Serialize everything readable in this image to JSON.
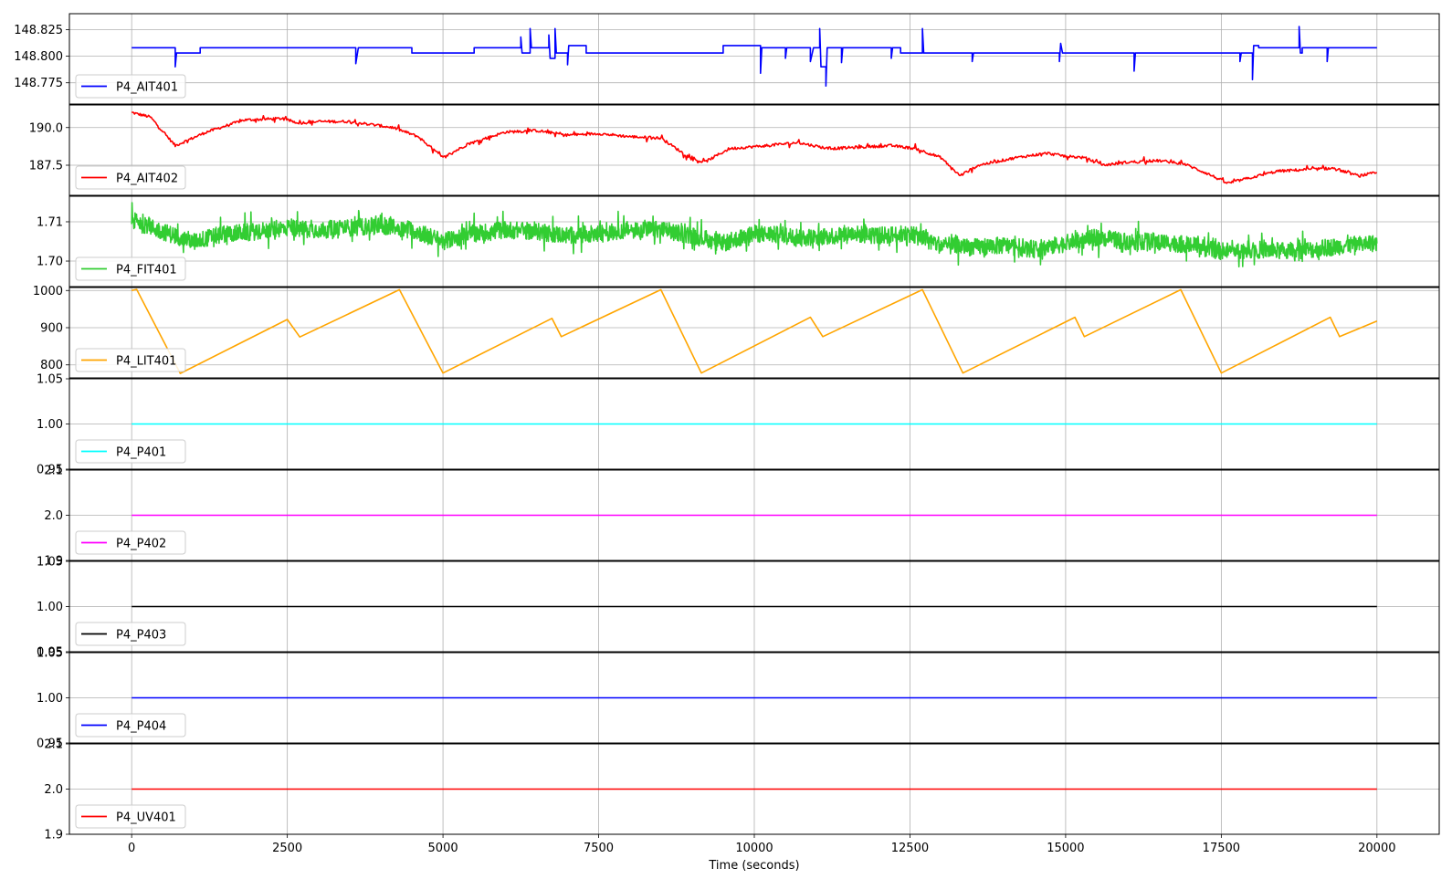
{
  "chart_data": {
    "type": "line",
    "xlabel": "Time (seconds)",
    "xlim": [
      -1000,
      21000
    ],
    "xticks": [
      0,
      2500,
      5000,
      7500,
      10000,
      12500,
      15000,
      17500,
      20000
    ],
    "xtick_labels": [
      "0",
      "2500",
      "5000",
      "7500",
      "10000",
      "12500",
      "15000",
      "17500",
      "20000"
    ],
    "grid": true,
    "legend_location": "lower left",
    "subplots": [
      {
        "name": "P4_AIT401",
        "color": "#0000ff",
        "ylim": [
          148.755,
          148.84
        ],
        "yticks": [
          148.775,
          148.8,
          148.825
        ],
        "ytick_labels": [
          "148.775",
          "148.800",
          "148.825"
        ],
        "points": [
          [
            0,
            148.808
          ],
          [
            700,
            148.808
          ],
          [
            700,
            148.79
          ],
          [
            720,
            148.803
          ],
          [
            1100,
            148.803
          ],
          [
            1100,
            148.808
          ],
          [
            3600,
            148.808
          ],
          [
            3600,
            148.793
          ],
          [
            3640,
            148.808
          ],
          [
            4500,
            148.808
          ],
          [
            4500,
            148.803
          ],
          [
            5500,
            148.803
          ],
          [
            5500,
            148.808
          ],
          [
            6250,
            148.808
          ],
          [
            6250,
            148.818
          ],
          [
            6270,
            148.803
          ],
          [
            6400,
            148.803
          ],
          [
            6400,
            148.826
          ],
          [
            6420,
            148.808
          ],
          [
            6700,
            148.808
          ],
          [
            6700,
            148.82
          ],
          [
            6720,
            148.798
          ],
          [
            6800,
            148.798
          ],
          [
            6800,
            148.826
          ],
          [
            6820,
            148.803
          ],
          [
            7000,
            148.803
          ],
          [
            7000,
            148.792
          ],
          [
            7020,
            148.81
          ],
          [
            7300,
            148.81
          ],
          [
            7300,
            148.803
          ],
          [
            8400,
            148.803
          ],
          [
            8400,
            148.803
          ],
          [
            9500,
            148.803
          ],
          [
            9500,
            148.81
          ],
          [
            10100,
            148.81
          ],
          [
            10100,
            148.784
          ],
          [
            10120,
            148.808
          ],
          [
            10500,
            148.808
          ],
          [
            10500,
            148.798
          ],
          [
            10520,
            148.808
          ],
          [
            10900,
            148.808
          ],
          [
            10900,
            148.795
          ],
          [
            10950,
            148.808
          ],
          [
            11050,
            148.808
          ],
          [
            11050,
            148.826
          ],
          [
            11070,
            148.79
          ],
          [
            11150,
            148.79
          ],
          [
            11150,
            148.772
          ],
          [
            11170,
            148.808
          ],
          [
            11400,
            148.808
          ],
          [
            11400,
            148.794
          ],
          [
            11420,
            148.808
          ],
          [
            12200,
            148.808
          ],
          [
            12200,
            148.798
          ],
          [
            12220,
            148.808
          ],
          [
            12350,
            148.808
          ],
          [
            12350,
            148.803
          ],
          [
            12700,
            148.803
          ],
          [
            12700,
            148.826
          ],
          [
            12720,
            148.803
          ],
          [
            13500,
            148.803
          ],
          [
            13500,
            148.795
          ],
          [
            13520,
            148.803
          ],
          [
            14900,
            148.803
          ],
          [
            14900,
            148.795
          ],
          [
            14920,
            148.812
          ],
          [
            14950,
            148.803
          ],
          [
            16100,
            148.803
          ],
          [
            16100,
            148.786
          ],
          [
            16120,
            148.803
          ],
          [
            17800,
            148.803
          ],
          [
            17800,
            148.795
          ],
          [
            17820,
            148.803
          ],
          [
            18000,
            148.803
          ],
          [
            18000,
            148.778
          ],
          [
            18020,
            148.81
          ],
          [
            18100,
            148.81
          ],
          [
            18100,
            148.808
          ],
          [
            18750,
            148.808
          ],
          [
            18750,
            148.828
          ],
          [
            18770,
            148.803
          ],
          [
            18800,
            148.803
          ],
          [
            18800,
            148.808
          ],
          [
            19200,
            148.808
          ],
          [
            19200,
            148.795
          ],
          [
            19220,
            148.808
          ],
          [
            20000,
            148.808
          ]
        ]
      },
      {
        "name": "P4_AIT402",
        "color": "#ff0000",
        "ylim": [
          185.5,
          191.5
        ],
        "yticks": [
          187.5,
          190.0
        ],
        "ytick_labels": [
          "187.5",
          "190.0"
        ],
        "points": [
          [
            0,
            191.0
          ],
          [
            300,
            190.7
          ],
          [
            700,
            188.8
          ],
          [
            1200,
            189.7
          ],
          [
            1800,
            190.5
          ],
          [
            2400,
            190.6
          ],
          [
            2700,
            190.3
          ],
          [
            3000,
            190.4
          ],
          [
            3500,
            190.4
          ],
          [
            4200,
            190.0
          ],
          [
            4600,
            189.4
          ],
          [
            5000,
            188.0
          ],
          [
            5400,
            188.9
          ],
          [
            6000,
            189.7
          ],
          [
            6500,
            189.8
          ],
          [
            7000,
            189.5
          ],
          [
            7500,
            189.6
          ],
          [
            8000,
            189.4
          ],
          [
            8500,
            189.3
          ],
          [
            9000,
            187.9
          ],
          [
            9200,
            187.7
          ],
          [
            9600,
            188.6
          ],
          [
            10200,
            188.8
          ],
          [
            10700,
            189.0
          ],
          [
            11200,
            188.6
          ],
          [
            11700,
            188.7
          ],
          [
            12200,
            188.8
          ],
          [
            12600,
            188.6
          ],
          [
            13000,
            188.0
          ],
          [
            13300,
            186.8
          ],
          [
            13600,
            187.5
          ],
          [
            14200,
            188.0
          ],
          [
            14700,
            188.3
          ],
          [
            15000,
            188.1
          ],
          [
            15300,
            188.0
          ],
          [
            15600,
            187.5
          ],
          [
            16000,
            187.7
          ],
          [
            16500,
            187.8
          ],
          [
            16900,
            187.6
          ],
          [
            17300,
            186.9
          ],
          [
            17600,
            186.3
          ],
          [
            17900,
            186.6
          ],
          [
            18400,
            187.1
          ],
          [
            18800,
            187.2
          ],
          [
            19300,
            187.3
          ],
          [
            19700,
            186.8
          ],
          [
            20000,
            187.0
          ]
        ]
      },
      {
        "name": "P4_FIT401",
        "color": "#32cd32",
        "ylim": [
          1.6935,
          1.7165
        ],
        "yticks": [
          1.7,
          1.71
        ],
        "ytick_labels": [
          "1.70",
          "1.71"
        ],
        "points": [
          [
            0,
            1.7105
          ],
          [
            500,
            1.7075
          ],
          [
            1000,
            1.705
          ],
          [
            1500,
            1.707
          ],
          [
            2000,
            1.7075
          ],
          [
            2500,
            1.7085
          ],
          [
            3000,
            1.708
          ],
          [
            3500,
            1.7085
          ],
          [
            4000,
            1.709
          ],
          [
            4500,
            1.708
          ],
          [
            5000,
            1.705
          ],
          [
            5500,
            1.707
          ],
          [
            6000,
            1.708
          ],
          [
            6500,
            1.7075
          ],
          [
            7000,
            1.7065
          ],
          [
            7500,
            1.707
          ],
          [
            8000,
            1.708
          ],
          [
            8500,
            1.708
          ],
          [
            9000,
            1.7065
          ],
          [
            9500,
            1.7045
          ],
          [
            10000,
            1.707
          ],
          [
            10500,
            1.7065
          ],
          [
            11000,
            1.706
          ],
          [
            11500,
            1.707
          ],
          [
            12000,
            1.7065
          ],
          [
            12500,
            1.707
          ],
          [
            13000,
            1.704
          ],
          [
            13500,
            1.7035
          ],
          [
            14000,
            1.704
          ],
          [
            14500,
            1.703
          ],
          [
            15000,
            1.7045
          ],
          [
            15500,
            1.706
          ],
          [
            16000,
            1.705
          ],
          [
            16500,
            1.705
          ],
          [
            17000,
            1.704
          ],
          [
            17500,
            1.7025
          ],
          [
            18000,
            1.703
          ],
          [
            18500,
            1.7025
          ],
          [
            19000,
            1.703
          ],
          [
            19500,
            1.704
          ],
          [
            20000,
            1.7045
          ]
        ]
      },
      {
        "name": "P4_LIT401",
        "color": "#ffa500",
        "ylim": [
          765,
          1008
        ],
        "yticks": [
          800,
          900,
          1000
        ],
        "ytick_labels": [
          "800",
          "900",
          "1000"
        ],
        "points": [
          [
            0,
            1000
          ],
          [
            80,
            1003
          ],
          [
            780,
            777
          ],
          [
            2500,
            922
          ],
          [
            2700,
            875
          ],
          [
            4300,
            1002
          ],
          [
            5000,
            778
          ],
          [
            6750,
            925
          ],
          [
            6900,
            876
          ],
          [
            8500,
            1002
          ],
          [
            9150,
            778
          ],
          [
            10900,
            928
          ],
          [
            11100,
            876
          ],
          [
            12700,
            1002
          ],
          [
            13350,
            778
          ],
          [
            15150,
            928
          ],
          [
            15300,
            876
          ],
          [
            16850,
            1002
          ],
          [
            17500,
            778
          ],
          [
            19250,
            928
          ],
          [
            19400,
            876
          ],
          [
            20000,
            918
          ]
        ]
      },
      {
        "name": "P4_P401",
        "color": "#00ffff",
        "ylim": [
          0.95,
          1.05
        ],
        "yticks": [
          0.95,
          1.0,
          1.05
        ],
        "ytick_labels": [
          "0.95",
          "1.00",
          "1.05"
        ],
        "points": [
          [
            0,
            1.0
          ],
          [
            20000,
            1.0
          ]
        ]
      },
      {
        "name": "P4_P402",
        "color": "#ff00ff",
        "ylim": [
          1.9,
          2.1
        ],
        "yticks": [
          1.9,
          2.0,
          2.1
        ],
        "ytick_labels": [
          "1.9",
          "2.0",
          "2.1"
        ],
        "points": [
          [
            0,
            2.0
          ],
          [
            20000,
            2.0
          ]
        ]
      },
      {
        "name": "P4_P403",
        "color": "#000000",
        "ylim": [
          0.95,
          1.05
        ],
        "yticks": [
          0.95,
          1.0,
          1.05
        ],
        "ytick_labels": [
          "0.95",
          "1.00",
          "1.05"
        ],
        "points": [
          [
            0,
            1.0
          ],
          [
            20000,
            1.0
          ]
        ]
      },
      {
        "name": "P4_P404",
        "color": "#0000ff",
        "ylim": [
          0.95,
          1.05
        ],
        "yticks": [
          0.95,
          1.0,
          1.05
        ],
        "ytick_labels": [
          "0.95",
          "1.00",
          "1.05"
        ],
        "points": [
          [
            0,
            1.0
          ],
          [
            20000,
            1.0
          ]
        ]
      },
      {
        "name": "P4_UV401",
        "color": "#ff0000",
        "ylim": [
          1.9,
          2.1
        ],
        "yticks": [
          1.9,
          2.0,
          2.1
        ],
        "ytick_labels": [
          "1.9",
          "2.0",
          "2.1"
        ],
        "points": [
          [
            0,
            2.0
          ],
          [
            20000,
            2.0
          ]
        ]
      }
    ]
  }
}
